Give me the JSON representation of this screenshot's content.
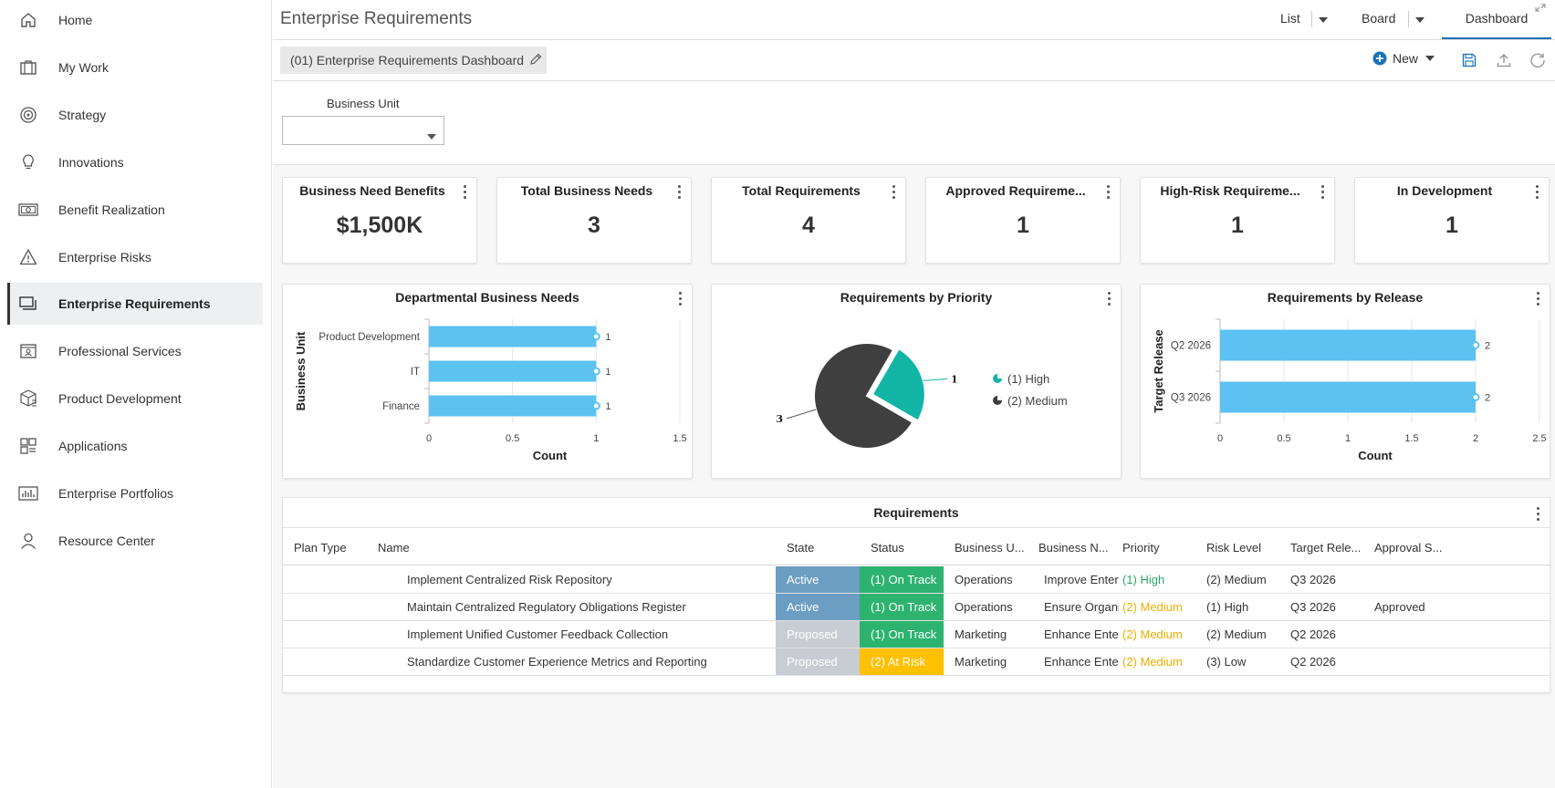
{
  "sidebar": {
    "items": [
      {
        "label": "Home",
        "icon": "home-icon",
        "active": false
      },
      {
        "label": "My Work",
        "icon": "briefcase-icon",
        "active": false
      },
      {
        "label": "Strategy",
        "icon": "target-icon",
        "active": false
      },
      {
        "label": "Innovations",
        "icon": "lightbulb-icon",
        "active": false
      },
      {
        "label": "Benefit Realization",
        "icon": "money-icon",
        "active": false
      },
      {
        "label": "Enterprise Risks",
        "icon": "warning-icon",
        "active": false
      },
      {
        "label": "Enterprise Requirements",
        "icon": "stacked-cards-icon",
        "active": true
      },
      {
        "label": "Professional Services",
        "icon": "id-card-icon",
        "active": false
      },
      {
        "label": "Product Development",
        "icon": "box-icon",
        "active": false
      },
      {
        "label": "Applications",
        "icon": "grid-icon",
        "active": false
      },
      {
        "label": "Enterprise Portfolios",
        "icon": "bar-chart-icon",
        "active": false
      },
      {
        "label": "Resource Center",
        "icon": "person-icon",
        "active": false
      }
    ]
  },
  "header": {
    "title": "Enterprise Requirements",
    "tabs": {
      "list": "List",
      "board": "Board",
      "dashboard": "Dashboard"
    }
  },
  "toolbar": {
    "dashboard_name": "(01) Enterprise Requirements Dashboard",
    "new_label": "New"
  },
  "filter": {
    "label": "Business Unit",
    "value": ""
  },
  "kpis": [
    {
      "title": "Business Need Benefits",
      "value": "$1,500K"
    },
    {
      "title": "Total Business Needs",
      "value": "3"
    },
    {
      "title": "Total Requirements",
      "value": "4"
    },
    {
      "title": "Approved Requireme...",
      "value": "1"
    },
    {
      "title": "High-Risk Requireme...",
      "value": "1"
    },
    {
      "title": "In Development",
      "value": "1"
    }
  ],
  "charts": {
    "dept": {
      "title": "Departmental Business Needs",
      "ylabel": "Business Unit",
      "xlabel": "Count"
    },
    "priority": {
      "title": "Requirements by Priority"
    },
    "release": {
      "title": "Requirements by Release",
      "ylabel": "Target Release",
      "xlabel": "Count"
    }
  },
  "chart_data": [
    {
      "type": "bar",
      "orientation": "horizontal",
      "title": "Departmental Business Needs",
      "categories": [
        "Product Development",
        "IT",
        "Finance"
      ],
      "values": [
        1,
        1,
        1
      ],
      "xlabel": "Count",
      "ylabel": "Business Unit",
      "xlim": [
        0,
        1.5
      ],
      "xticks": [
        "0",
        "0.5",
        "1",
        "1.5"
      ],
      "color": "#5bc2f2",
      "grid": true
    },
    {
      "type": "pie",
      "title": "Requirements by Priority",
      "slices": [
        {
          "label": "(1) High",
          "value": 1,
          "color": "#12b5a5"
        },
        {
          "label": "(2) Medium",
          "value": 3,
          "color": "#3f3f3f"
        }
      ],
      "legend": "right"
    },
    {
      "type": "bar",
      "orientation": "horizontal",
      "title": "Requirements by Release",
      "categories": [
        "Q2 2026",
        "Q3 2026"
      ],
      "values": [
        2,
        2
      ],
      "xlabel": "Count",
      "ylabel": "Target Release",
      "xlim": [
        0,
        2.5
      ],
      "xticks": [
        "0",
        "0.5",
        "1",
        "1.5",
        "2",
        "2.5"
      ],
      "color": "#5bc2f2",
      "grid": true
    }
  ],
  "table": {
    "title": "Requirements",
    "columns": [
      "Plan Type",
      "Name",
      "State",
      "Status",
      "Business U...",
      "Business N...",
      "Priority",
      "Risk Level",
      "Target Rele...",
      "Approval S..."
    ],
    "rows": [
      {
        "plan_type": "",
        "name": "Implement Centralized Risk Repository",
        "state": "Active",
        "status": "(1) On Track",
        "business_unit": "Operations",
        "business_need": "Improve Enterp",
        "priority": "(1) High",
        "risk": "(2) Medium",
        "target": "Q3 2026",
        "approval": ""
      },
      {
        "plan_type": "",
        "name": "Maintain Centralized Regulatory Obligations Register",
        "state": "Active",
        "status": "(1) On Track",
        "business_unit": "Operations",
        "business_need": "Ensure Organiz",
        "priority": "(2) Medium",
        "risk": "(1) High",
        "target": "Q3 2026",
        "approval": "Approved"
      },
      {
        "plan_type": "",
        "name": "Implement Unified Customer Feedback Collection",
        "state": "Proposed",
        "status": "(1) On Track",
        "business_unit": "Marketing",
        "business_need": "Enhance Enter",
        "priority": "(2) Medium",
        "risk": "(2) Medium",
        "target": "Q2 2026",
        "approval": ""
      },
      {
        "plan_type": "",
        "name": "Standardize Customer Experience Metrics and Reporting",
        "state": "Proposed",
        "status": "(2) At Risk",
        "business_unit": "Marketing",
        "business_need": "Enhance Enter",
        "priority": "(2) Medium",
        "risk": "(3) Low",
        "target": "Q2 2026",
        "approval": ""
      }
    ]
  },
  "colors": {
    "state_active": "#6c9ec4",
    "state_proposed": "#c8cdd3",
    "status_on_track": "#2db36f",
    "status_at_risk": "#ffc000",
    "priority_high": "#2aa866",
    "priority_medium": "#e5b000",
    "accent": "#1a73b8"
  }
}
